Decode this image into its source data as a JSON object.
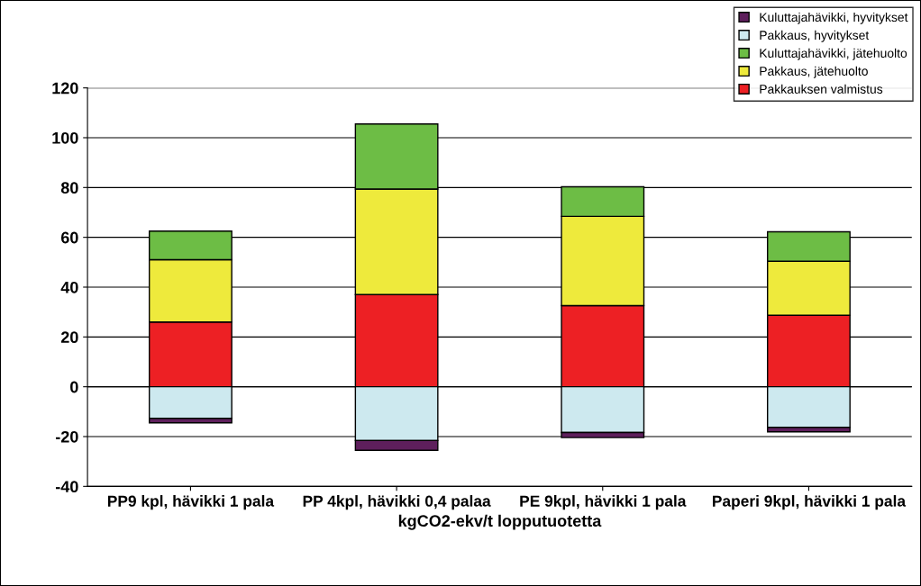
{
  "chart_data": {
    "type": "bar",
    "stacked": true,
    "xlabel": "kgCO2-ekv/t lopputuotetta",
    "categories": [
      "PP9 kpl, hävikki 1 pala",
      "PP 4kpl, hävikki 0,4 palaa",
      "PE 9kpl, hävikki 1 pala",
      "Paperi 9kpl, hävikki 1 pala"
    ],
    "series": [
      {
        "name": "Pakkauksen valmistus",
        "color": "#ed2024",
        "values": [
          26,
          37,
          32.6,
          28.7
        ]
      },
      {
        "name": "Pakkaus, jätehuolto",
        "color": "#eeea3c",
        "values": [
          25,
          42.4,
          35.8,
          21.7
        ]
      },
      {
        "name": "Kuluttajahävikki, jätehuolto",
        "color": "#6dbd45",
        "values": [
          11.5,
          26.1,
          11.9,
          11.8
        ]
      },
      {
        "name": "Pakkaus, hyvitykset",
        "color": "#cde9ef",
        "values": [
          -12.7,
          -21.6,
          -18.4,
          -16.3
        ]
      },
      {
        "name": "Kuluttajahävikki, hyvitykset",
        "color": "#5e1f5c",
        "values": [
          -1.8,
          -3.9,
          -2.0,
          -1.8
        ]
      }
    ],
    "ylim": [
      -40,
      120
    ],
    "yticks": [
      -40,
      -20,
      0,
      20,
      40,
      60,
      80,
      100,
      120
    ],
    "grid": "y",
    "legend": "top right"
  }
}
